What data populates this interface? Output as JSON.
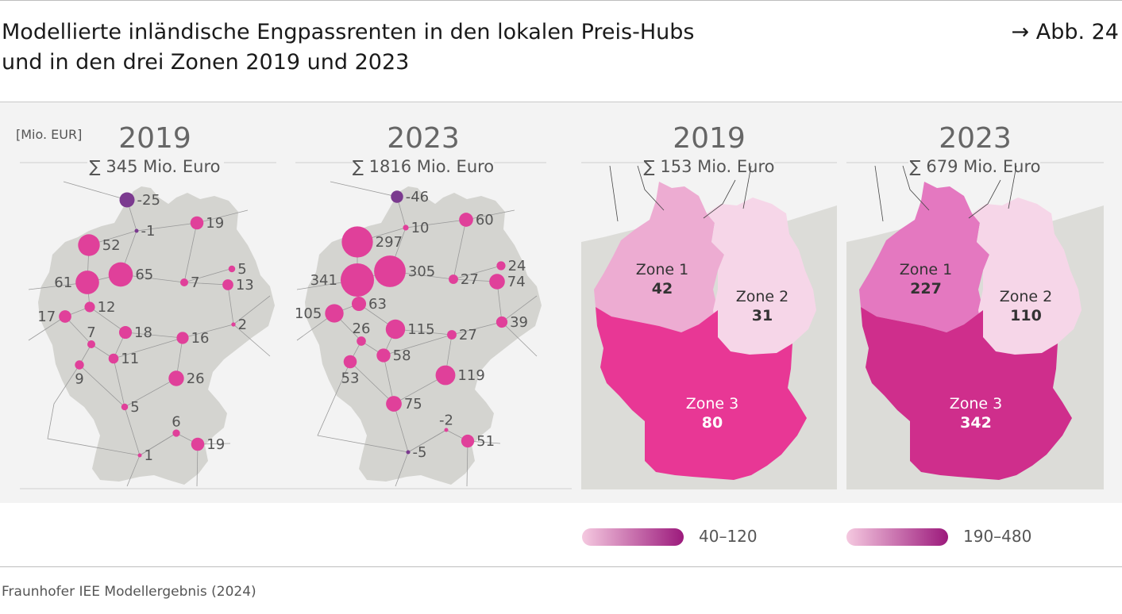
{
  "header": {
    "title_line1": "Modellierte inländische Engpassrenten in den lokalen Preis-Hubs",
    "title_line2": "und in den drei Zonen 2019 und 2023",
    "figure_ref": "→ Abb. 24"
  },
  "unit": "[Mio. EUR]",
  "hub_maps": [
    {
      "year": "2019",
      "sum": "∑ 345 Mio. Euro",
      "hubs": [
        {
          "value": "-25",
          "negative": true
        },
        {
          "value": "-1",
          "negative": true
        },
        {
          "value": "19"
        },
        {
          "value": "52"
        },
        {
          "value": "61"
        },
        {
          "value": "65"
        },
        {
          "value": "5"
        },
        {
          "value": "7"
        },
        {
          "value": "13"
        },
        {
          "value": "12"
        },
        {
          "value": "17"
        },
        {
          "value": "7"
        },
        {
          "value": "18"
        },
        {
          "value": "2"
        },
        {
          "value": "16"
        },
        {
          "value": "11"
        },
        {
          "value": "9"
        },
        {
          "value": "26"
        },
        {
          "value": "5"
        },
        {
          "value": "6"
        },
        {
          "value": "19"
        },
        {
          "value": "1"
        }
      ]
    },
    {
      "year": "2023",
      "sum": "∑ 1816 Mio. Euro",
      "hubs": [
        {
          "value": "-46",
          "negative": true
        },
        {
          "value": "10"
        },
        {
          "value": "60"
        },
        {
          "value": "297"
        },
        {
          "value": "341"
        },
        {
          "value": "305"
        },
        {
          "value": "24"
        },
        {
          "value": "27"
        },
        {
          "value": "74"
        },
        {
          "value": "63"
        },
        {
          "value": "105"
        },
        {
          "value": "26"
        },
        {
          "value": "115"
        },
        {
          "value": "39"
        },
        {
          "value": "27"
        },
        {
          "value": "58"
        },
        {
          "value": "53"
        },
        {
          "value": "119"
        },
        {
          "value": "75"
        },
        {
          "value": "-2"
        },
        {
          "value": "51"
        },
        {
          "value": "-5",
          "negative": true
        }
      ]
    }
  ],
  "zone_maps": [
    {
      "year": "2019",
      "sum": "∑ 153 Mio. Euro",
      "zones": [
        {
          "name": "Zone 1",
          "value": "42",
          "color": "#edacd2"
        },
        {
          "name": "Zone 2",
          "value": "31",
          "color": "#f6d6e8"
        },
        {
          "name": "Zone 3",
          "value": "80",
          "color": "#e83795"
        }
      ]
    },
    {
      "year": "2023",
      "sum": "∑ 679 Mio. Euro",
      "zones": [
        {
          "name": "Zone 1",
          "value": "227",
          "color": "#e478c0"
        },
        {
          "name": "Zone 2",
          "value": "110",
          "color": "#f6d6e8"
        },
        {
          "name": "Zone 3",
          "value": "342",
          "color": "#cf2e8c"
        }
      ]
    }
  ],
  "legend": [
    {
      "label": "40–120",
      "from": "#f5c9e0",
      "to": "#9c1a7c"
    },
    {
      "label": "190–480",
      "from": "#f5c9e0",
      "to": "#9c1a7c"
    }
  ],
  "colors": {
    "hub_positive": "#e0409a",
    "hub_negative": "#7b3a8f",
    "land": "#d4d4d0",
    "panel": "#f3f3f3"
  },
  "source": "Fraunhofer IEE Modellergebnis (2024)"
}
